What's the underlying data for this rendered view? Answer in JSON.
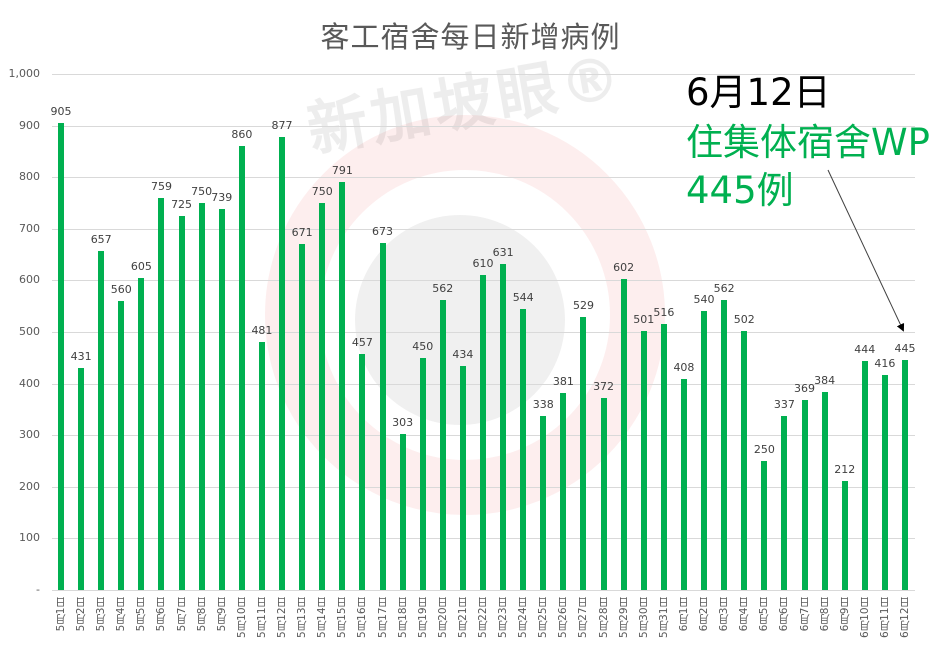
{
  "chart_data": {
    "type": "bar",
    "title": "客工宿舍每日新增病例",
    "xlabel": "",
    "ylabel": "",
    "ylim": [
      0,
      1000
    ],
    "yticks": [
      "-",
      "100",
      "200",
      "300",
      "400",
      "500",
      "600",
      "700",
      "800",
      "900",
      "1,000"
    ],
    "grid": true,
    "legend": null,
    "bar_color": "#00b050",
    "categories": [
      "5月1日",
      "5月2日",
      "5月3日",
      "5月4日",
      "5月5日",
      "5月6日",
      "5月7日",
      "5月8日",
      "5月9日",
      "5月10日",
      "5月11日",
      "5月12日",
      "5月13日",
      "5月14日",
      "5月15日",
      "5月16日",
      "5月17日",
      "5月18日",
      "5月19日",
      "5月20日",
      "5月21日",
      "5月22日",
      "5月23日",
      "5月24日",
      "5月25日",
      "5月26日",
      "5月27日",
      "5月28日",
      "5月29日",
      "5月30日",
      "5月31日",
      "6月1日",
      "6月2日",
      "6月3日",
      "6月4日",
      "6月5日",
      "6月6日",
      "6月7日",
      "6月8日",
      "6月9日",
      "6月10日",
      "6月11日",
      "6月12日"
    ],
    "values": [
      905,
      431,
      657,
      560,
      605,
      759,
      725,
      750,
      739,
      860,
      481,
      877,
      671,
      750,
      791,
      457,
      673,
      303,
      450,
      562,
      434,
      610,
      631,
      544,
      338,
      381,
      529,
      372,
      602,
      501,
      516,
      408,
      540,
      562,
      502,
      250,
      337,
      369,
      384,
      212,
      444,
      416,
      445
    ],
    "annotation": {
      "date": "6月12日",
      "line2": "住集体宿舍WP",
      "line3": "445例",
      "date_color": "#000000",
      "text_color": "#00b050",
      "arrow_target": "6月12日"
    }
  },
  "watermark": {
    "text": "新加坡眼®"
  }
}
